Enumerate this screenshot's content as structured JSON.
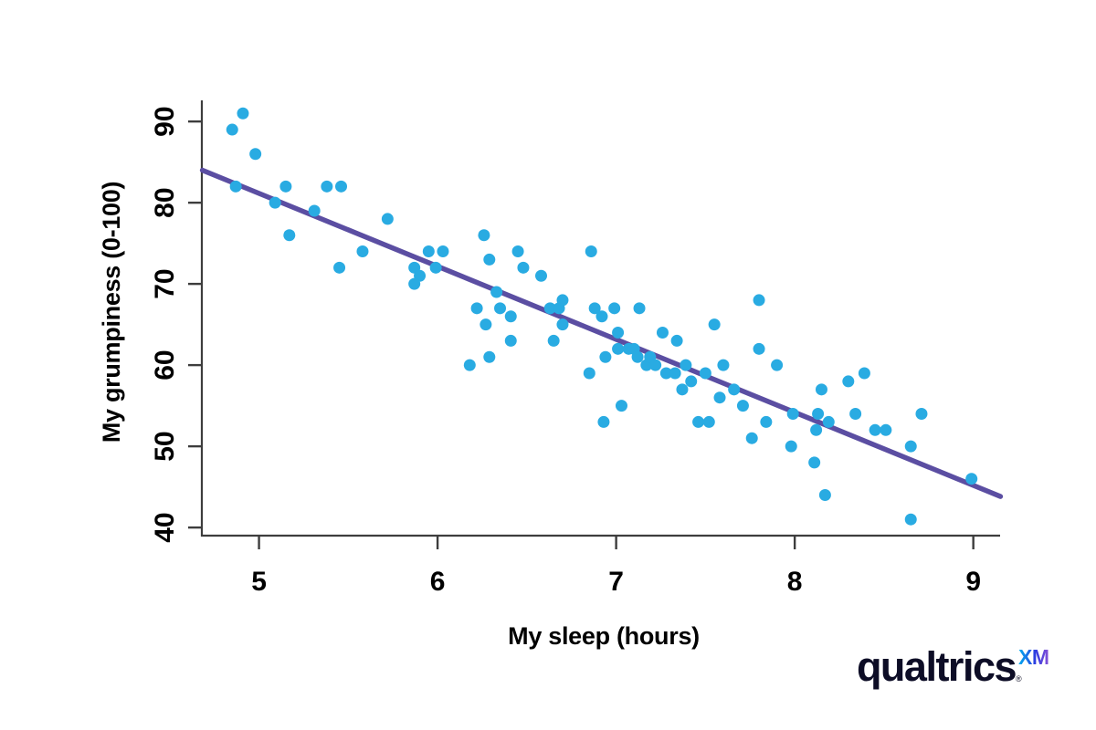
{
  "page": {
    "background": "#ffffff"
  },
  "chart_data": {
    "type": "scatter",
    "title": "",
    "xlabel": "My sleep (hours)",
    "ylabel": "My grumpiness (0-100)",
    "x_ticks": [
      5,
      6,
      7,
      8,
      9
    ],
    "y_ticks": [
      40,
      50,
      60,
      70,
      80,
      90
    ],
    "x_tick_labels": [
      "5",
      "6",
      "7",
      "8",
      "9"
    ],
    "y_tick_labels": [
      "40",
      "50",
      "60",
      "70",
      "80",
      "90"
    ],
    "xlim": [
      4.68,
      9.15
    ],
    "ylim": [
      39.0,
      92.6
    ],
    "grid": false,
    "legend": null,
    "point_color": "#29ABE2",
    "line_color": "#5B4EA2",
    "axis_color": "#3D3D3D",
    "label_color": "#000000",
    "regression": {
      "slope": -8.99,
      "intercept": 126.1,
      "x_start": 4.683,
      "x_end": 9.152
    },
    "points": [
      [
        4.85,
        89
      ],
      [
        4.91,
        91
      ],
      [
        4.98,
        86
      ],
      [
        4.87,
        82
      ],
      [
        5.09,
        80
      ],
      [
        5.15,
        82
      ],
      [
        5.17,
        76
      ],
      [
        5.31,
        79
      ],
      [
        5.38,
        82
      ],
      [
        5.46,
        82
      ],
      [
        5.45,
        72
      ],
      [
        5.58,
        74
      ],
      [
        5.72,
        78
      ],
      [
        5.87,
        72
      ],
      [
        5.9,
        71
      ],
      [
        5.87,
        70
      ],
      [
        5.95,
        74
      ],
      [
        5.99,
        72
      ],
      [
        6.03,
        74
      ],
      [
        6.18,
        60
      ],
      [
        6.22,
        67
      ],
      [
        6.26,
        76
      ],
      [
        6.27,
        65
      ],
      [
        6.29,
        73
      ],
      [
        6.29,
        61
      ],
      [
        6.33,
        69
      ],
      [
        6.35,
        67
      ],
      [
        6.41,
        66
      ],
      [
        6.41,
        63
      ],
      [
        6.45,
        74
      ],
      [
        6.48,
        72
      ],
      [
        6.58,
        71
      ],
      [
        6.63,
        67
      ],
      [
        6.68,
        67
      ],
      [
        6.7,
        68
      ],
      [
        6.7,
        65
      ],
      [
        6.65,
        63
      ],
      [
        6.85,
        59
      ],
      [
        6.86,
        74
      ],
      [
        6.88,
        67
      ],
      [
        6.92,
        66
      ],
      [
        6.93,
        53
      ],
      [
        6.94,
        61
      ],
      [
        6.99,
        67
      ],
      [
        7.01,
        64
      ],
      [
        7.01,
        62
      ],
      [
        7.03,
        55
      ],
      [
        7.07,
        62
      ],
      [
        7.1,
        62
      ],
      [
        7.12,
        61
      ],
      [
        7.13,
        67
      ],
      [
        7.17,
        60
      ],
      [
        7.19,
        61
      ],
      [
        7.22,
        60
      ],
      [
        7.26,
        64
      ],
      [
        7.28,
        59
      ],
      [
        7.33,
        59
      ],
      [
        7.34,
        63
      ],
      [
        7.37,
        57
      ],
      [
        7.39,
        60
      ],
      [
        7.42,
        58
      ],
      [
        7.46,
        53
      ],
      [
        7.5,
        59
      ],
      [
        7.52,
        53
      ],
      [
        7.55,
        65
      ],
      [
        7.58,
        56
      ],
      [
        7.6,
        60
      ],
      [
        7.66,
        57
      ],
      [
        7.71,
        55
      ],
      [
        7.76,
        51
      ],
      [
        7.8,
        68
      ],
      [
        7.8,
        62
      ],
      [
        7.84,
        53
      ],
      [
        7.9,
        60
      ],
      [
        7.98,
        50
      ],
      [
        7.99,
        54
      ],
      [
        8.11,
        48
      ],
      [
        8.13,
        54
      ],
      [
        8.12,
        52
      ],
      [
        8.15,
        57
      ],
      [
        8.17,
        44
      ],
      [
        8.19,
        53
      ],
      [
        8.3,
        58
      ],
      [
        8.34,
        54
      ],
      [
        8.39,
        59
      ],
      [
        8.45,
        52
      ],
      [
        8.51,
        52
      ],
      [
        8.65,
        50
      ],
      [
        8.65,
        41
      ],
      [
        8.71,
        54
      ],
      [
        8.99,
        46
      ]
    ]
  },
  "logo": {
    "wordmark": "qualtrics",
    "registered": "®",
    "xm": "XM"
  }
}
